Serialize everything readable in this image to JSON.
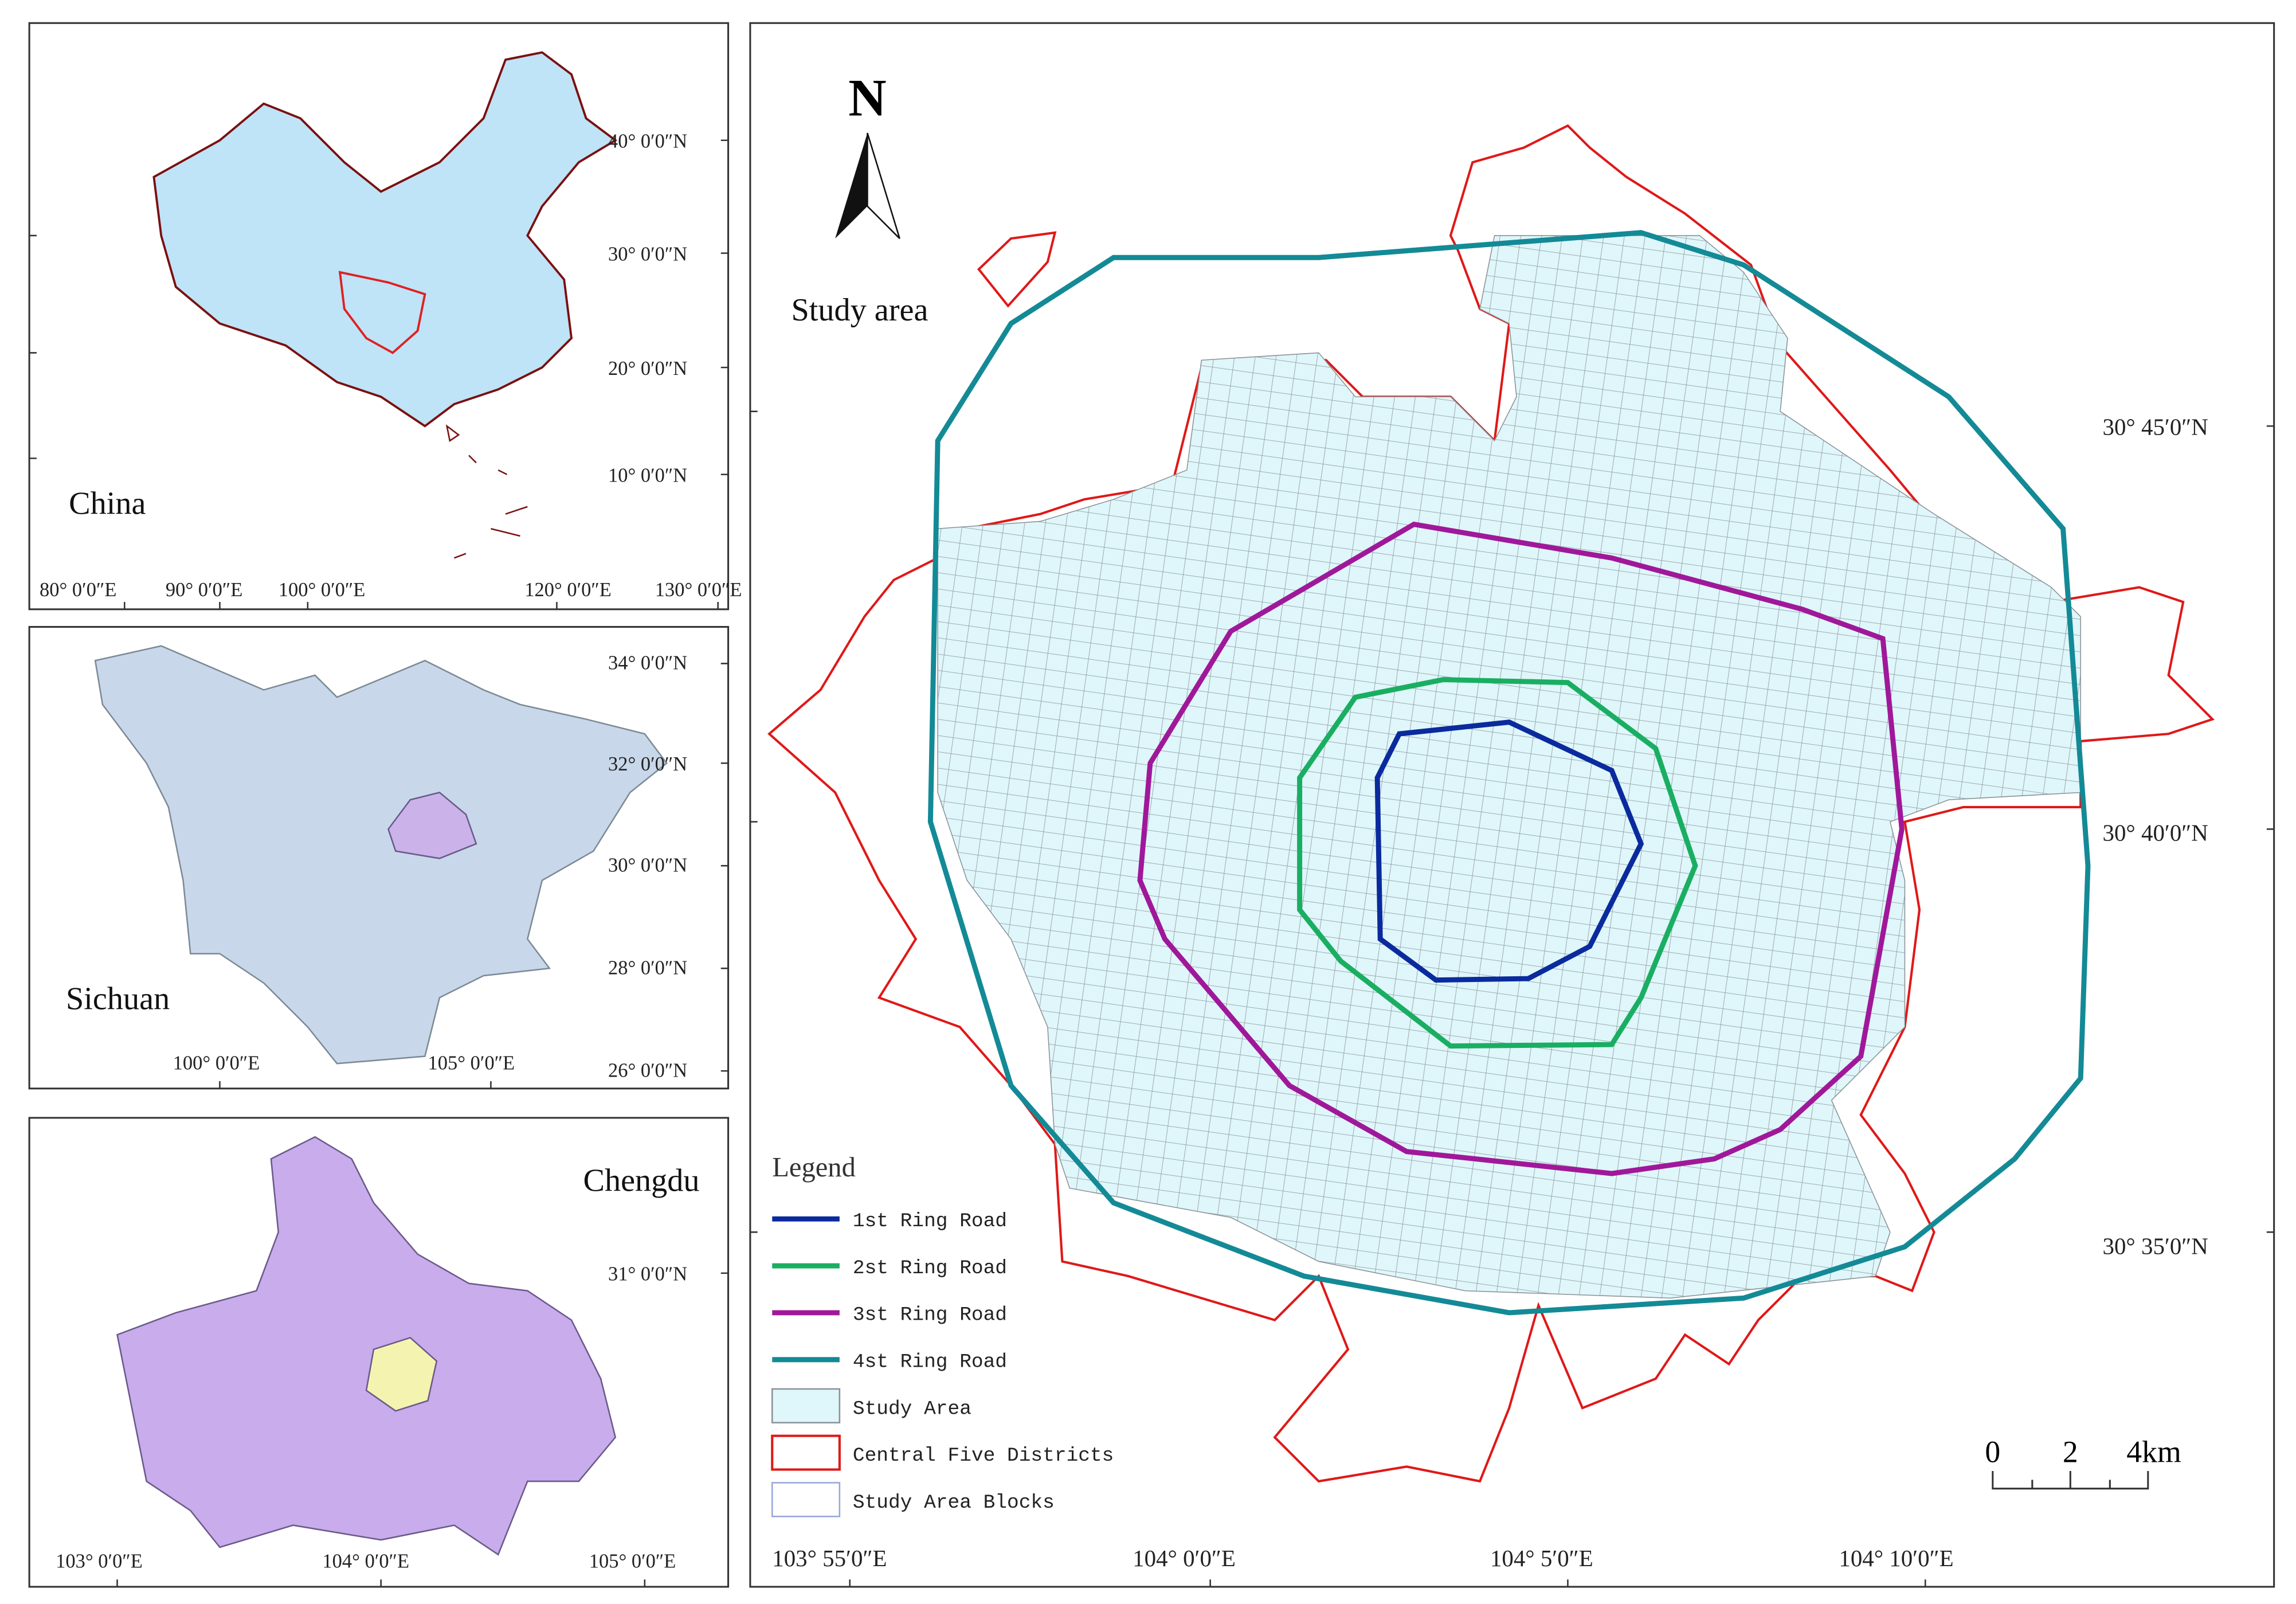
{
  "panels": [
    {
      "title": "China",
      "lat_labels": [
        "40° 0′0″N",
        "30° 0′0″N",
        "20° 0′0″N",
        "10° 0′0″N"
      ],
      "lon_labels": [
        "80° 0′0″E",
        "90° 0′0″E",
        "100° 0′0″E",
        "120° 0′0″E",
        "130° 0′0″E"
      ]
    },
    {
      "title": "Sichuan",
      "lat_labels": [
        "34° 0′0″N",
        "32° 0′0″N",
        "30° 0′0″N",
        "28° 0′0″N",
        "26° 0′0″N"
      ],
      "lon_labels": [
        "100° 0′0″E",
        "105° 0′0″E"
      ]
    },
    {
      "title": "Chengdu",
      "lat_labels": [
        "31° 0′0″N"
      ],
      "lon_labels": [
        "103° 0′0″E",
        "104° 0′0″E",
        "105° 0′0″E"
      ]
    }
  ],
  "main": {
    "title": "Study area",
    "north": "N",
    "lat_labels": [
      "30° 45′0″N",
      "30° 40′0″N",
      "30° 35′0″N"
    ],
    "lon_labels": [
      "103° 55′0″E",
      "104° 0′0″E",
      "104° 5′0″E",
      "104° 10′0″E"
    ],
    "legend": {
      "title": "Legend",
      "items": [
        "1st Ring Road",
        "2st Ring Road",
        "3st Ring Road",
        "4st Ring Road",
        "Study Area",
        "Central Five Districts",
        "Study Area Blocks"
      ]
    },
    "scale": [
      "0",
      "2",
      "4km"
    ]
  }
}
